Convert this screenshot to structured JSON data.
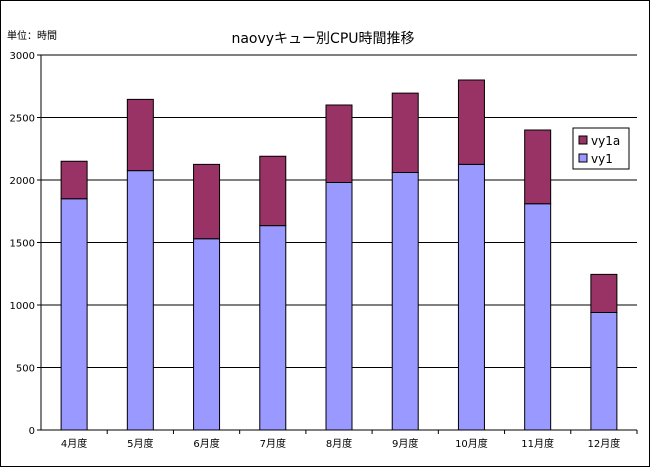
{
  "chart_data": {
    "type": "bar",
    "stacked": true,
    "title": "naovyキュー別CPU時間推移",
    "unit_label": "単位：時間",
    "xlabel": "",
    "ylabel": "",
    "ylim": [
      0,
      3000
    ],
    "yticks": [
      0,
      500,
      1000,
      1500,
      2000,
      2500,
      3000
    ],
    "grid": true,
    "legend_position": "right",
    "categories": [
      "4月度",
      "5月度",
      "6月度",
      "7月度",
      "8月度",
      "9月度",
      "10月度",
      "11月度",
      "12月度"
    ],
    "series": [
      {
        "name": "vy1",
        "color": "#9999ff",
        "values": [
          1850,
          2075,
          1530,
          1635,
          1980,
          2060,
          2125,
          1810,
          940
        ]
      },
      {
        "name": "vy1a",
        "color": "#993366",
        "values": [
          300,
          570,
          595,
          555,
          620,
          635,
          675,
          590,
          305
        ]
      }
    ]
  }
}
